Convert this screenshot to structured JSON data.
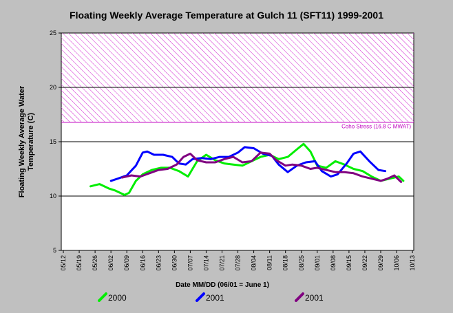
{
  "chart_data": {
    "type": "line",
    "title": "Floating Weekly Average Temperature at Gulch 11 (SFT11) 1999-2001",
    "xlabel": "Date MM/DD (06/01 = June 1)",
    "ylabel_lines": [
      "Floating Weekly Average Water",
      "Temperature (C)"
    ],
    "ylim": [
      5,
      25
    ],
    "yticks": [
      5,
      10,
      15,
      20,
      25
    ],
    "xticks": [
      "05/12",
      "05/19",
      "05/26",
      "06/02",
      "06/09",
      "06/16",
      "06/23",
      "06/30",
      "07/07",
      "07/14",
      "07/21",
      "07/28",
      "08/04",
      "08/11",
      "08/18",
      "08/25",
      "09/01",
      "09/08",
      "09/15",
      "09/22",
      "09/29",
      "10/06",
      "10/13"
    ],
    "grid": {
      "horizontal_at": [
        10,
        15,
        20
      ]
    },
    "threshold": {
      "from": 16.8,
      "to": 25,
      "label": "Coho Stress (16.8 C MWAT)",
      "color": "#c000c0"
    },
    "legend_position": "bottom",
    "series": [
      {
        "name": "2000",
        "color": "#00ee00",
        "x": [
          "05/24",
          "05/28",
          "06/01",
          "06/04",
          "06/08",
          "06/10",
          "06/13",
          "06/16",
          "06/20",
          "06/24",
          "06/28",
          "07/02",
          "07/06",
          "07/10",
          "07/14",
          "07/18",
          "07/22",
          "07/26",
          "07/30",
          "08/03",
          "08/07",
          "08/11",
          "08/15",
          "08/19",
          "08/23",
          "08/26",
          "08/29",
          "09/01",
          "09/05",
          "09/09",
          "09/13",
          "09/17",
          "09/21",
          "09/25",
          "09/29",
          "10/03",
          "10/07",
          "10/09"
        ],
        "y": [
          10.9,
          11.1,
          10.7,
          10.5,
          10.1,
          10.3,
          11.4,
          12.0,
          12.4,
          12.6,
          12.6,
          12.3,
          11.8,
          13.2,
          13.8,
          13.3,
          13.0,
          12.9,
          12.8,
          13.2,
          13.6,
          13.8,
          13.4,
          13.6,
          14.3,
          14.8,
          14.1,
          12.8,
          12.6,
          13.2,
          12.9,
          12.5,
          12.3,
          11.8,
          11.4,
          11.6,
          11.8,
          11.4
        ]
      },
      {
        "name": "2001",
        "color": "#0000ff",
        "x": [
          "06/02",
          "06/05",
          "06/09",
          "06/13",
          "06/16",
          "06/18",
          "06/21",
          "06/25",
          "06/29",
          "07/02",
          "07/05",
          "07/08",
          "07/12",
          "07/16",
          "07/20",
          "07/24",
          "07/28",
          "07/31",
          "08/04",
          "08/08",
          "08/12",
          "08/15",
          "08/19",
          "08/23",
          "08/27",
          "08/31",
          "09/03",
          "09/07",
          "09/10",
          "09/14",
          "09/17",
          "09/20",
          "09/24",
          "09/28",
          "10/01"
        ],
        "y": [
          11.4,
          11.6,
          11.9,
          12.8,
          14.0,
          14.1,
          13.8,
          13.8,
          13.6,
          13.0,
          12.9,
          13.4,
          13.5,
          13.4,
          13.6,
          13.6,
          14.0,
          14.5,
          14.4,
          13.9,
          13.7,
          12.9,
          12.2,
          12.8,
          13.1,
          13.2,
          12.3,
          11.8,
          12.0,
          13.0,
          13.9,
          14.1,
          13.2,
          12.4,
          12.3
        ]
      },
      {
        "name": "2001",
        "color": "#800080",
        "x": [
          "06/07",
          "06/11",
          "06/15",
          "06/19",
          "06/23",
          "06/27",
          "07/01",
          "07/04",
          "07/07",
          "07/10",
          "07/14",
          "07/18",
          "07/22",
          "07/26",
          "07/30",
          "08/03",
          "08/07",
          "08/11",
          "08/14",
          "08/18",
          "08/21",
          "08/25",
          "08/29",
          "09/01",
          "09/05",
          "09/09",
          "09/13",
          "09/17",
          "09/21",
          "09/25",
          "09/29",
          "10/02",
          "10/05",
          "10/08"
        ],
        "y": [
          11.7,
          11.9,
          11.8,
          12.1,
          12.4,
          12.5,
          12.9,
          13.6,
          13.9,
          13.3,
          13.1,
          13.1,
          13.4,
          13.6,
          13.1,
          13.2,
          14.0,
          13.9,
          13.3,
          12.8,
          12.9,
          12.8,
          12.5,
          12.6,
          12.4,
          12.2,
          12.2,
          12.1,
          11.8,
          11.6,
          11.4,
          11.6,
          11.9,
          11.3
        ]
      }
    ]
  }
}
